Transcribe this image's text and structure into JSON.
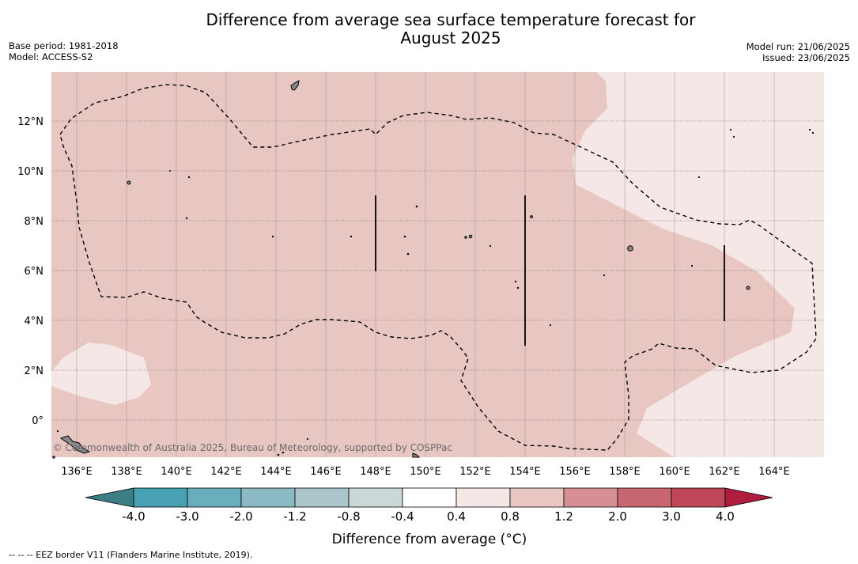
{
  "title": {
    "line1": "Difference from average sea surface temperature forecast for",
    "line2": "August 2025"
  },
  "info_left": {
    "base_period": "Base period: 1981-2018",
    "model": "Model: ACCESS-S2"
  },
  "info_right": {
    "model_run": "Model run: 21/06/2025",
    "issued": "Issued: 23/06/2025"
  },
  "map": {
    "lon_range": [
      135,
      166
    ],
    "lat_range": [
      -1.5,
      14
    ],
    "lon_ticks": [
      "136°E",
      "138°E",
      "140°E",
      "142°E",
      "144°E",
      "146°E",
      "148°E",
      "150°E",
      "152°E",
      "154°E",
      "156°E",
      "158°E",
      "160°E",
      "162°E",
      "164°E"
    ],
    "lat_ticks": [
      "12°N",
      "10°N",
      "8°N",
      "6°N",
      "4°N",
      "2°N",
      "0°"
    ],
    "credit": "© Commonwealth of Australia 2025, Bureau of Meteorology, supported by COSPPac",
    "colors": {
      "band_0_4_0_8": "#f5e7e5",
      "band_0_8_1_2": "#e8c7c2",
      "land": "#888888"
    }
  },
  "colorbar": {
    "ticks": [
      "-4.0",
      "-3.0",
      "-2.0",
      "-1.2",
      "-0.8",
      "-0.4",
      "0.4",
      "0.8",
      "1.2",
      "2.0",
      "3.0",
      "4.0"
    ],
    "colors": [
      "#47a1b2",
      "#6aadbc",
      "#8bbac4",
      "#aac6ca",
      "#cad8da",
      "#ffffff",
      "#f5e7e5",
      "#e8c7c2",
      "#d68f94",
      "#c96770",
      "#be4857"
    ],
    "under_color": "#3b7f85",
    "over_color": "#b01c3e",
    "label": "Difference from average (°C)"
  },
  "eez_note": "--  --  -- EEZ border V11 (Flanders Marine Institute, 2019)."
}
